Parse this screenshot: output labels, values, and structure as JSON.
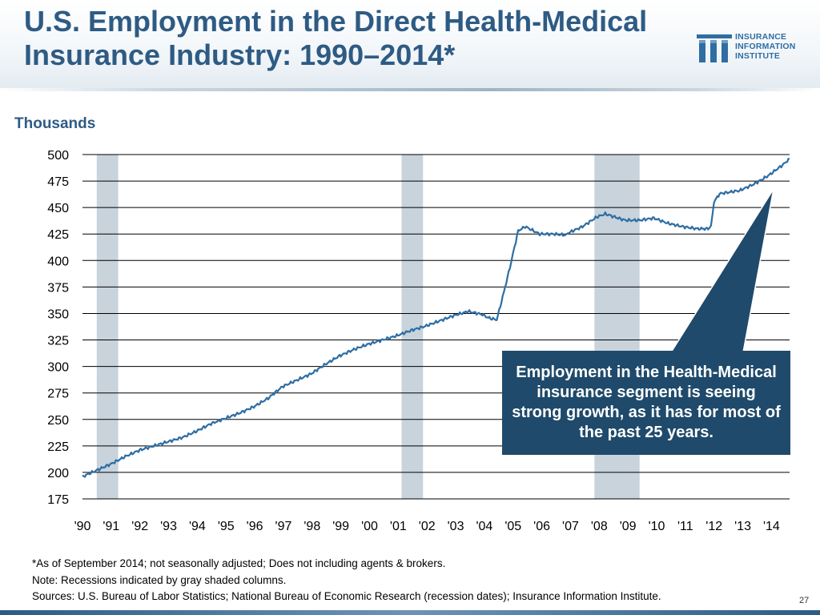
{
  "title": "U.S. Employment in the Direct Health-Medical Insurance Industry: 1990–2014*",
  "logo": {
    "lines": [
      "INSURANCE",
      "INFORMATION",
      "INSTITUTE"
    ],
    "icon": "iii-columns-logo-icon"
  },
  "y_unit_label": "Thousands",
  "callout": "Employment in the Health-Medical insurance segment is seeing strong growth, as it has for most of the past 25 years.",
  "notes": [
    "*As of September 2014; not seasonally adjusted; Does not including agents & brokers.",
    "Note: Recessions indicated by gray shaded columns.",
    "Sources: U.S. Bureau of Labor Statistics;  National Bureau of Economic Research (recession dates); Insurance Information Institute."
  ],
  "page_number": "27",
  "colors": {
    "title": "#2e5b84",
    "line": "#2e6ea3",
    "grid": "#000000",
    "recession": "#c8d3dc",
    "callout_bg": "#1f4a6b",
    "callout_text": "#ffffff"
  },
  "chart_data": {
    "type": "line",
    "title": "U.S. Employment in the Direct Health-Medical Insurance Industry: 1990–2014*",
    "ylabel": "Thousands",
    "ylim": [
      175,
      500
    ],
    "yticks": [
      500,
      475,
      450,
      425,
      400,
      375,
      350,
      325,
      300,
      275,
      250,
      225,
      200,
      175
    ],
    "xlim": [
      1990.0,
      2014.75
    ],
    "xtick_labels": [
      "'90",
      "'91",
      "'92",
      "'93",
      "'94",
      "'95",
      "'96",
      "'97",
      "'98",
      "'99",
      "'00",
      "'01",
      "'02",
      "'03",
      "'04",
      "'05",
      "'06",
      "'07",
      "'08",
      "'09",
      "'10",
      "'11",
      "'12",
      "'13",
      "'14"
    ],
    "recessions": [
      [
        1990.5,
        1991.25
      ],
      [
        2001.17,
        2001.92
      ],
      [
        2007.92,
        2009.5
      ]
    ],
    "series": [
      {
        "name": "Direct health-medical insurance employment",
        "x": [
          1990.0,
          1990.5,
          1991.0,
          1991.5,
          1992.0,
          1992.5,
          1993.0,
          1993.5,
          1994.0,
          1994.5,
          1995.0,
          1995.5,
          1996.0,
          1996.5,
          1997.0,
          1997.5,
          1998.0,
          1998.5,
          1999.0,
          1999.5,
          2000.0,
          2000.5,
          2001.0,
          2001.5,
          2002.0,
          2002.5,
          2003.0,
          2003.5,
          2004.0,
          2004.2,
          2004.5,
          2004.75,
          2005.0,
          2005.25,
          2005.5,
          2006.0,
          2006.5,
          2006.9,
          2007.0,
          2007.5,
          2008.0,
          2008.3,
          2008.75,
          2009.0,
          2009.5,
          2010.0,
          2010.5,
          2011.0,
          2011.5,
          2011.9,
          2012.0,
          2012.1,
          2012.3,
          2012.75,
          2013.0,
          2013.5,
          2014.0,
          2014.5,
          2014.75
        ],
        "values": [
          196,
          202,
          208,
          215,
          221,
          225,
          229,
          233,
          239,
          246,
          251,
          256,
          262,
          270,
          281,
          287,
          293,
          302,
          310,
          316,
          321,
          325,
          329,
          334,
          338,
          343,
          348,
          352,
          349,
          346,
          344,
          370,
          398,
          428,
          432,
          425,
          425,
          424,
          426,
          432,
          441,
          444,
          440,
          438,
          438,
          440,
          435,
          432,
          430,
          430,
          432,
          455,
          463,
          465,
          466,
          472,
          480,
          490,
          496
        ]
      }
    ]
  }
}
